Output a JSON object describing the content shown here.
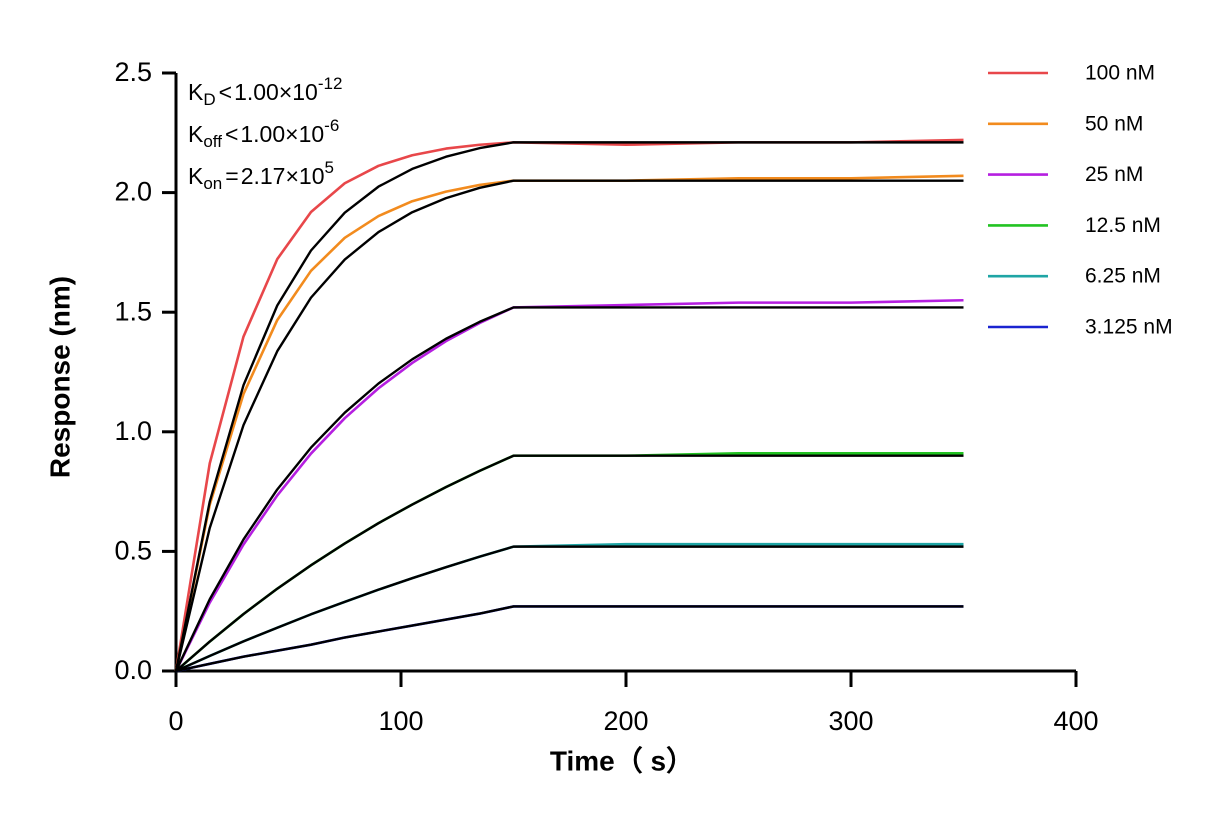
{
  "chart_data": {
    "type": "line",
    "x_label": "Time（ s）",
    "y_label": "Response (nm)",
    "x": [
      0,
      15,
      30,
      45,
      60,
      75,
      90,
      105,
      120,
      135,
      150,
      200,
      250,
      300,
      350
    ],
    "xlim": [
      0,
      400
    ],
    "xticks": [
      0,
      100,
      200,
      300,
      400
    ],
    "ylim": [
      0,
      2.5
    ],
    "yticks": [
      {
        "value": 0,
        "label": "0.0"
      },
      0.5,
      {
        "value": 1,
        "label": "1.0"
      },
      1.5,
      {
        "value": 2,
        "label": "2.0"
      },
      2.5
    ],
    "series": [
      {
        "name": "100 nM",
        "color": "#e8474a",
        "values": [
          0,
          0.868,
          1.398,
          1.722,
          1.919,
          2.039,
          2.112,
          2.156,
          2.184,
          2.2,
          2.21,
          2.2,
          2.21,
          2.21,
          2.22
        ]
      },
      {
        "name": "50 nM",
        "color": "#f28b1e",
        "values": [
          0,
          0.695,
          1.158,
          1.467,
          1.673,
          1.811,
          1.902,
          1.964,
          2.004,
          2.032,
          2.05,
          2.05,
          2.06,
          2.06,
          2.07
        ]
      },
      {
        "name": "25 nM",
        "color": "#b51fe0",
        "values": [
          0,
          0.286,
          0.529,
          0.734,
          0.909,
          1.057,
          1.182,
          1.288,
          1.379,
          1.455,
          1.52,
          1.53,
          1.54,
          1.54,
          1.55
        ]
      },
      {
        "name": "12.5 nM",
        "color": "#22c322",
        "values": [
          0,
          0.123,
          0.238,
          0.344,
          0.442,
          0.533,
          0.618,
          0.696,
          0.769,
          0.837,
          0.9,
          0.9,
          0.91,
          0.91,
          0.91
        ]
      },
      {
        "name": "6.25 nM",
        "color": "#1fa5a5",
        "values": [
          0,
          0.063,
          0.124,
          0.181,
          0.237,
          0.289,
          0.34,
          0.388,
          0.434,
          0.478,
          0.52,
          0.53,
          0.53,
          0.53,
          0.53
        ]
      },
      {
        "name": "3.125 nM",
        "color": "#1a24d0",
        "values": [
          0,
          0.03,
          0.06,
          0.085,
          0.11,
          0.14,
          0.165,
          0.19,
          0.215,
          0.24,
          0.27,
          0.27,
          0.27,
          0.27,
          0.27
        ]
      }
    ],
    "fits": [
      {
        "color": "#000000",
        "values": [
          0,
          0.708,
          1.195,
          1.528,
          1.758,
          1.916,
          2.025,
          2.099,
          2.15,
          2.186,
          2.21,
          2.21,
          2.21,
          2.21,
          2.21
        ]
      },
      {
        "color": "#000000",
        "values": [
          0,
          0.598,
          1.028,
          1.337,
          1.561,
          1.72,
          1.835,
          1.918,
          1.977,
          2.02,
          2.05,
          2.05,
          2.05,
          2.05,
          2.05
        ]
      },
      {
        "color": "#000000",
        "values": [
          0,
          0.3,
          0.55,
          0.759,
          0.934,
          1.08,
          1.202,
          1.303,
          1.389,
          1.46,
          1.52,
          1.52,
          1.52,
          1.52,
          1.52
        ]
      },
      {
        "color": "#000000",
        "values": [
          0,
          0.123,
          0.238,
          0.344,
          0.442,
          0.533,
          0.618,
          0.696,
          0.769,
          0.837,
          0.9,
          0.9,
          0.9,
          0.9,
          0.9
        ]
      },
      {
        "color": "#000000",
        "values": [
          0,
          0.063,
          0.124,
          0.181,
          0.237,
          0.289,
          0.34,
          0.388,
          0.434,
          0.478,
          0.52,
          0.52,
          0.52,
          0.52,
          0.52
        ]
      },
      {
        "color": "#000000",
        "values": [
          0,
          0.03,
          0.06,
          0.085,
          0.11,
          0.14,
          0.165,
          0.19,
          0.215,
          0.24,
          0.27,
          0.27,
          0.27,
          0.27,
          0.27
        ]
      }
    ],
    "annotations": [
      {
        "symbol": "K",
        "subscript": "D",
        "relation": "<",
        "mantissa": "1.00×10",
        "exponent": "-12"
      },
      {
        "symbol": "K",
        "subscript": "off",
        "relation": "<",
        "mantissa": "1.00×10",
        "exponent": "-6"
      },
      {
        "symbol": "K",
        "subscript": "on",
        "relation": "=",
        "mantissa": "2.17×10",
        "exponent": "5"
      }
    ],
    "legend": "right"
  }
}
